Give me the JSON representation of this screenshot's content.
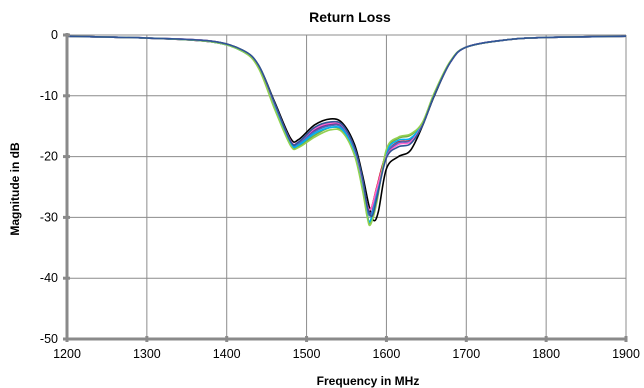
{
  "chart_data": {
    "type": "line",
    "title": "Return Loss",
    "xlabel": "Frequency in MHz",
    "ylabel": "Magnitude in dB",
    "xlim": [
      1200,
      1900
    ],
    "ylim": [
      -50,
      0
    ],
    "xticks": [
      1200,
      1300,
      1400,
      1500,
      1600,
      1700,
      1800,
      1900
    ],
    "yticks": [
      0,
      -10,
      -20,
      -30,
      -40,
      -50
    ],
    "grid": true,
    "legend": "none",
    "series": [
      {
        "color": "#000000",
        "x": [
          1200,
          1300,
          1380,
          1420,
          1440,
          1460,
          1480,
          1490,
          1510,
          1530,
          1545,
          1560,
          1570,
          1578,
          1584,
          1590,
          1600,
          1615,
          1630,
          1645,
          1660,
          1680,
          1700,
          1750,
          1800,
          1900
        ],
        "y": [
          -0.2,
          -0.5,
          -1.0,
          -2.5,
          -5.0,
          -11.0,
          -17.0,
          -17.2,
          -14.8,
          -13.8,
          -14.5,
          -18.0,
          -23.0,
          -28.0,
          -30.5,
          -29.0,
          -22.0,
          -20.0,
          -19.0,
          -15.0,
          -10.0,
          -4.5,
          -2.0,
          -0.8,
          -0.4,
          -0.2
        ]
      },
      {
        "color": "#70ad47",
        "x": [
          1200,
          1300,
          1380,
          1420,
          1440,
          1460,
          1480,
          1490,
          1510,
          1530,
          1545,
          1560,
          1570,
          1576,
          1580,
          1588,
          1600,
          1615,
          1630,
          1645,
          1660,
          1680,
          1700,
          1750,
          1800,
          1900
        ],
        "y": [
          -0.2,
          -0.5,
          -1.1,
          -2.7,
          -5.4,
          -12.0,
          -18.0,
          -18.3,
          -16.5,
          -15.2,
          -15.8,
          -19.5,
          -25.0,
          -29.5,
          -31.0,
          -27.0,
          -19.0,
          -17.0,
          -16.5,
          -14.5,
          -9.6,
          -4.4,
          -2.0,
          -0.8,
          -0.4,
          -0.2
        ]
      },
      {
        "color": "#c00000",
        "x": [
          1200,
          1300,
          1380,
          1420,
          1440,
          1460,
          1480,
          1490,
          1510,
          1530,
          1545,
          1560,
          1570,
          1576,
          1581,
          1588,
          1600,
          1615,
          1630,
          1645,
          1660,
          1680,
          1700,
          1750,
          1800,
          1900
        ],
        "y": [
          -0.2,
          -0.5,
          -1.1,
          -2.6,
          -5.2,
          -11.6,
          -17.8,
          -17.9,
          -15.8,
          -14.8,
          -15.2,
          -19.0,
          -24.0,
          -28.0,
          -28.5,
          -25.0,
          -19.5,
          -17.6,
          -17.3,
          -14.6,
          -9.7,
          -4.4,
          -2.0,
          -0.8,
          -0.4,
          -0.2
        ]
      },
      {
        "color": "#7030a0",
        "x": [
          1200,
          1300,
          1380,
          1420,
          1440,
          1460,
          1480,
          1490,
          1510,
          1530,
          1545,
          1560,
          1570,
          1576,
          1582,
          1588,
          1600,
          1615,
          1630,
          1645,
          1660,
          1680,
          1700,
          1750,
          1800,
          1900
        ],
        "y": [
          -0.2,
          -0.5,
          -1.1,
          -2.6,
          -5.1,
          -11.4,
          -17.6,
          -17.8,
          -15.6,
          -14.6,
          -15.0,
          -18.8,
          -24.0,
          -28.5,
          -29.0,
          -25.5,
          -19.8,
          -17.8,
          -17.5,
          -14.8,
          -9.8,
          -4.5,
          -2.0,
          -0.8,
          -0.4,
          -0.2
        ]
      },
      {
        "color": "#4472c4",
        "x": [
          1200,
          1300,
          1380,
          1420,
          1440,
          1460,
          1480,
          1490,
          1510,
          1530,
          1545,
          1560,
          1570,
          1576,
          1581,
          1588,
          1600,
          1615,
          1630,
          1645,
          1660,
          1680,
          1700,
          1750,
          1800,
          1900
        ],
        "y": [
          -0.2,
          -0.5,
          -1.0,
          -2.6,
          -5.2,
          -11.5,
          -17.7,
          -17.9,
          -15.9,
          -14.9,
          -15.3,
          -19.1,
          -24.5,
          -28.8,
          -29.5,
          -26.0,
          -19.6,
          -17.7,
          -17.4,
          -14.7,
          -9.7,
          -4.5,
          -2.0,
          -0.8,
          -0.4,
          -0.2
        ]
      },
      {
        "color": "#00b0f0",
        "x": [
          1200,
          1300,
          1380,
          1420,
          1440,
          1460,
          1480,
          1490,
          1510,
          1530,
          1545,
          1560,
          1570,
          1576,
          1580,
          1588,
          1600,
          1615,
          1630,
          1645,
          1660,
          1680,
          1700,
          1750,
          1800,
          1900
        ],
        "y": [
          -0.2,
          -0.5,
          -1.1,
          -2.7,
          -5.3,
          -11.8,
          -17.9,
          -18.1,
          -16.2,
          -15.2,
          -15.6,
          -19.4,
          -25.0,
          -29.8,
          -30.5,
          -26.5,
          -19.2,
          -17.3,
          -17.0,
          -14.6,
          -9.6,
          -4.4,
          -2.0,
          -0.8,
          -0.4,
          -0.2
        ]
      },
      {
        "color": "#ff66cc",
        "x": [
          1200,
          1300,
          1380,
          1420,
          1440,
          1460,
          1480,
          1490,
          1510,
          1530,
          1545,
          1560,
          1570,
          1576,
          1581,
          1588,
          1600,
          1615,
          1630,
          1645,
          1660,
          1680,
          1700,
          1750,
          1800,
          1900
        ],
        "y": [
          -0.2,
          -0.5,
          -1.0,
          -2.6,
          -5.1,
          -11.3,
          -17.4,
          -17.6,
          -15.4,
          -14.5,
          -14.9,
          -18.6,
          -23.8,
          -28.0,
          -28.5,
          -25.2,
          -20.0,
          -18.0,
          -17.6,
          -14.8,
          -9.8,
          -4.5,
          -2.0,
          -0.8,
          -0.4,
          -0.2
        ]
      },
      {
        "color": "#92d050",
        "x": [
          1200,
          1300,
          1380,
          1420,
          1440,
          1460,
          1480,
          1490,
          1510,
          1530,
          1545,
          1560,
          1570,
          1576,
          1580,
          1588,
          1600,
          1615,
          1630,
          1645,
          1660,
          1680,
          1700,
          1750,
          1800,
          1900
        ],
        "y": [
          -0.2,
          -0.5,
          -1.1,
          -2.7,
          -5.5,
          -12.2,
          -18.2,
          -18.5,
          -16.8,
          -15.6,
          -16.0,
          -19.8,
          -25.5,
          -30.0,
          -31.2,
          -27.5,
          -18.8,
          -16.8,
          -16.3,
          -14.4,
          -9.5,
          -4.3,
          -2.0,
          -0.8,
          -0.4,
          -0.2
        ]
      },
      {
        "color": "#2f5597",
        "x": [
          1200,
          1300,
          1380,
          1420,
          1440,
          1460,
          1480,
          1490,
          1510,
          1530,
          1545,
          1560,
          1570,
          1576,
          1582,
          1588,
          1600,
          1615,
          1630,
          1645,
          1660,
          1680,
          1700,
          1750,
          1800,
          1900
        ],
        "y": [
          -0.2,
          -0.5,
          -1.0,
          -2.5,
          -5.0,
          -11.2,
          -17.5,
          -17.6,
          -15.2,
          -14.3,
          -14.8,
          -18.5,
          -23.5,
          -28.2,
          -29.8,
          -26.8,
          -20.2,
          -18.4,
          -17.9,
          -14.9,
          -9.9,
          -4.5,
          -2.0,
          -0.8,
          -0.4,
          -0.2
        ]
      }
    ]
  }
}
